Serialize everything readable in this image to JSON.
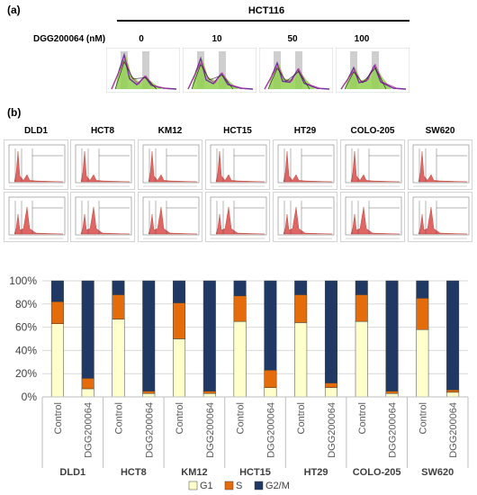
{
  "panel_a": {
    "label": "(a)",
    "cell_line": "HCT116",
    "dose_label": "DGG200064 (nM)",
    "doses": [
      "0",
      "10",
      "50",
      "100"
    ]
  },
  "panel_b": {
    "label": "(b)",
    "cell_lines": [
      "DLD1",
      "HCT8",
      "KM12",
      "HCT15",
      "HT29",
      "COLO-205",
      "SW620"
    ]
  },
  "colors": {
    "g1": "#FFFFCC",
    "s": "#E46C0A",
    "g2m": "#1F3864",
    "histogram": "#E06666",
    "purple": "#7030A0",
    "green": "#92D050"
  },
  "chart_data": {
    "type": "bar",
    "stacked": true,
    "groups": [
      "DLD1",
      "HCT8",
      "KM12",
      "HCT15",
      "HT29",
      "COLO-205",
      "SW620"
    ],
    "conditions": [
      "Control",
      "DGG200064"
    ],
    "categories": [
      "Control",
      "DGG200064",
      "Control",
      "DGG200064",
      "Control",
      "DGG200064",
      "Control",
      "DGG200064",
      "Control",
      "DGG200064",
      "Control",
      "DGG200064",
      "Control",
      "DGG200064"
    ],
    "series": [
      {
        "name": "G1",
        "values": [
          63,
          7,
          67,
          3,
          50,
          3,
          65,
          8,
          64,
          8,
          65,
          3,
          58,
          4
        ]
      },
      {
        "name": "S",
        "values": [
          19,
          9,
          21,
          2,
          31,
          2,
          22,
          15,
          24,
          4,
          23,
          2,
          27,
          2
        ]
      },
      {
        "name": "G2/M",
        "values": [
          18,
          84,
          12,
          95,
          19,
          95,
          13,
          77,
          12,
          88,
          12,
          95,
          15,
          94
        ]
      }
    ],
    "yticks": [
      "0%",
      "20%",
      "40%",
      "60%",
      "80%",
      "100%"
    ],
    "ylim": [
      0,
      100
    ],
    "legend_position": "bottom",
    "grid": true
  }
}
